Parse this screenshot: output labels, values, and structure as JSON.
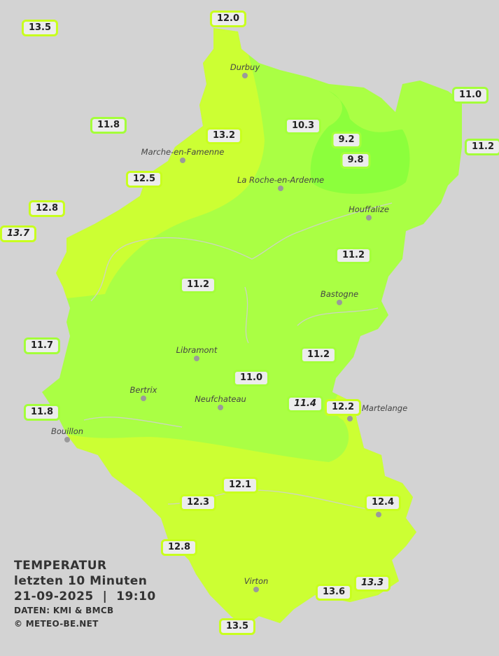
{
  "legend": {
    "title": "TEMPERATUR",
    "period": "letzten 10 Minuten",
    "datetime": "21-09-2025  |  19:10",
    "source": "DATEN: KMI & BMCB",
    "copyright": "© METEO-BE.NET"
  },
  "colors": {
    "background": "#d3d3d3",
    "warm": "#ccff33",
    "mild": "#aaff44",
    "cool": "#88ff44",
    "label_border": "#c8ff1e"
  },
  "stations": [
    {
      "value": "13.5"
    },
    {
      "value": "12.0"
    },
    {
      "value": "11.8"
    },
    {
      "value": "13.2"
    },
    {
      "value": "10.3"
    },
    {
      "value": "9.2"
    },
    {
      "value": "9.8"
    },
    {
      "value": "11.0"
    },
    {
      "value": "11.2"
    },
    {
      "value": "12.5"
    },
    {
      "value": "12.8"
    },
    {
      "value": "13.7",
      "italic": true
    },
    {
      "value": "11.2"
    },
    {
      "value": "11.2"
    },
    {
      "value": "11.7"
    },
    {
      "value": "11.2"
    },
    {
      "value": "11.0"
    },
    {
      "value": "11.4",
      "italic": true
    },
    {
      "value": "12.2"
    },
    {
      "value": "11.8"
    },
    {
      "value": "12.1"
    },
    {
      "value": "12.3"
    },
    {
      "value": "12.4"
    },
    {
      "value": "12.8"
    },
    {
      "value": "13.6"
    },
    {
      "value": "13.3",
      "italic": true
    },
    {
      "value": "13.5"
    }
  ],
  "cities": [
    {
      "name": "Durbuy"
    },
    {
      "name": "Marche-en-Famenne"
    },
    {
      "name": "La Roche-en-Ardenne"
    },
    {
      "name": "Houffalize"
    },
    {
      "name": "Bastogne"
    },
    {
      "name": "Libramont"
    },
    {
      "name": "Bertrix"
    },
    {
      "name": "Neufchateau"
    },
    {
      "name": "Bouillon"
    },
    {
      "name": "Virton"
    },
    {
      "name": "Martelange"
    },
    {
      "name": ""
    }
  ]
}
